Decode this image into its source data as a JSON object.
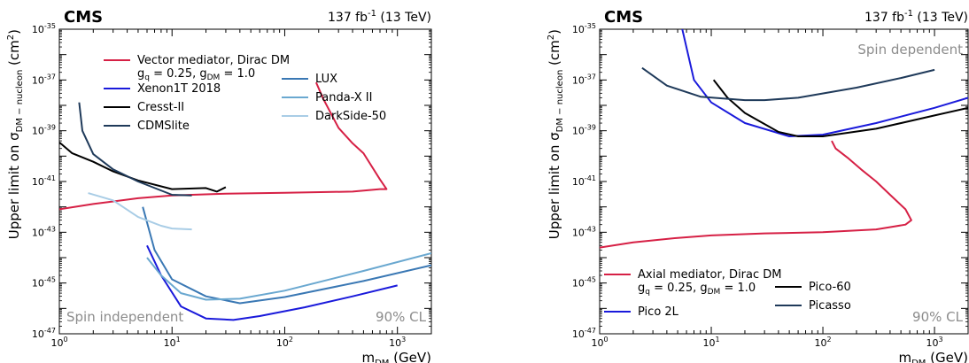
{
  "chart_data": [
    {
      "type": "line",
      "title": "CMS",
      "luminosity": "137 fb",
      "luminosity_exp": "-1",
      "energy": "(13 TeV)",
      "xlabel": "m",
      "xlabel_sub": "DM",
      "xlabel_unit": "(GeV)",
      "ylabel": "Upper limit on σ",
      "ylabel_sub": "DM − nucleon",
      "ylabel_unit": "(cm",
      "ylabel_unit_exp": "2",
      "ylabel_unit_close": ")",
      "xscale": "log",
      "yscale": "log",
      "xlim": [
        1,
        2000
      ],
      "ylim": [
        1e-47,
        1e-35
      ],
      "xticks": [
        {
          "v": 1,
          "m": "10",
          "e": "0"
        },
        {
          "v": 10,
          "m": "10",
          "e": "1"
        },
        {
          "v": 100,
          "m": "10",
          "e": "2"
        },
        {
          "v": 1000,
          "m": "10",
          "e": "3"
        }
      ],
      "yticks": [
        {
          "v": 1e-47,
          "m": "10",
          "e": "-47"
        },
        {
          "v": 1e-45,
          "m": "10",
          "e": "-45"
        },
        {
          "v": 1e-43,
          "m": "10",
          "e": "-43"
        },
        {
          "v": 1e-41,
          "m": "10",
          "e": "-41"
        },
        {
          "v": 1e-39,
          "m": "10",
          "e": "-39"
        },
        {
          "v": 1e-37,
          "m": "10",
          "e": "-37"
        },
        {
          "v": 1e-35,
          "m": "10",
          "e": "-35"
        }
      ],
      "annotation_left": "Spin independent",
      "annotation_right": "90% CL",
      "legend": [
        {
          "label": "Vector mediator, Dirac DM",
          "color": "#d62045"
        },
        {
          "label": "Xenon1T 2018",
          "color": "#1a1adb"
        },
        {
          "label": "Cresst-II",
          "color": "#000000"
        },
        {
          "label": "CDMSlite",
          "color": "#1f3a5a"
        },
        {
          "label": "LUX",
          "color": "#3a78b4"
        },
        {
          "label": "Panda-X II",
          "color": "#6aa8d0"
        },
        {
          "label": "DarkSide-50",
          "color": "#a9cde6"
        }
      ],
      "legend_couplings": {
        "g_q": "g",
        "q_sub": "q",
        "q_val": " = 0.25, g",
        "dm_sub": "DM",
        "dm_val": " = 1.0"
      },
      "series": [
        {
          "name": "Vector mediator, Dirac DM",
          "color": "#d62045",
          "points": [
            [
              1,
              8e-43
            ],
            [
              2,
              1.3e-42
            ],
            [
              5,
              2.2e-42
            ],
            [
              10,
              2.8e-42
            ],
            [
              30,
              3.3e-42
            ],
            [
              100,
              3.6e-42
            ],
            [
              400,
              4e-42
            ],
            [
              700,
              5e-42
            ],
            [
              800,
              5e-42
            ],
            [
              700,
              1.2e-41
            ],
            [
              500,
              1.3e-40
            ],
            [
              400,
              3.2e-40
            ],
            [
              300,
              1.3e-39
            ],
            [
              220,
              1.8e-38
            ],
            [
              190,
              8e-38
            ]
          ]
        },
        {
          "name": "Xenon1T 2018",
          "color": "#1a1adb",
          "points": [
            [
              6,
              3e-44
            ],
            [
              8,
              2e-45
            ],
            [
              12,
              1.2e-46
            ],
            [
              20,
              4e-47
            ],
            [
              35,
              3.5e-47
            ],
            [
              60,
              5e-47
            ],
            [
              150,
              1.1e-46
            ],
            [
              400,
              3e-46
            ],
            [
              1000,
              8e-46
            ]
          ]
        },
        {
          "name": "Cresst-II",
          "color": "#000000",
          "points": [
            [
              1,
              3.5e-40
            ],
            [
              1.3,
              1.3e-40
            ],
            [
              2,
              6e-41
            ],
            [
              3,
              2.5e-41
            ],
            [
              5,
              1.1e-41
            ],
            [
              10,
              5e-42
            ],
            [
              20,
              5.5e-42
            ],
            [
              25,
              4e-42
            ],
            [
              30,
              6e-42
            ]
          ]
        },
        {
          "name": "CDMSlite",
          "color": "#1f3a5a",
          "points": [
            [
              1.5,
              1.3e-38
            ],
            [
              1.6,
              1e-39
            ],
            [
              2,
              1.2e-40
            ],
            [
              3,
              3e-41
            ],
            [
              5,
              1e-41
            ],
            [
              10,
              3e-42
            ],
            [
              15,
              2.8e-42
            ]
          ]
        },
        {
          "name": "LUX",
          "color": "#3a78b4",
          "points": [
            [
              5.5,
              1e-42
            ],
            [
              7,
              2e-44
            ],
            [
              10,
              1.4e-45
            ],
            [
              20,
              3e-46
            ],
            [
              40,
              1.6e-46
            ],
            [
              100,
              2.8e-46
            ],
            [
              500,
              1.2e-45
            ],
            [
              2000,
              5e-45
            ]
          ]
        },
        {
          "name": "Panda-X II",
          "color": "#6aa8d0",
          "points": [
            [
              6,
              1e-44
            ],
            [
              8,
              2e-45
            ],
            [
              12,
              4e-46
            ],
            [
              20,
              2.2e-46
            ],
            [
              40,
              2.4e-46
            ],
            [
              100,
              5e-46
            ],
            [
              500,
              3e-45
            ],
            [
              2000,
              1.5e-44
            ]
          ]
        },
        {
          "name": "DarkSide-50",
          "color": "#a9cde6",
          "points": [
            [
              1.8,
              3.5e-42
            ],
            [
              3,
              1.8e-42
            ],
            [
              5,
              4e-43
            ],
            [
              8,
              1.8e-43
            ],
            [
              10,
              1.4e-43
            ],
            [
              15,
              1.3e-43
            ]
          ]
        }
      ]
    },
    {
      "type": "line",
      "title": "CMS",
      "luminosity": "137 fb",
      "luminosity_exp": "-1",
      "energy": "(13 TeV)",
      "xlabel": "m",
      "xlabel_sub": "DM",
      "xlabel_unit": "(GeV)",
      "ylabel": "Upper limit on σ",
      "ylabel_sub": "DM − nucleon",
      "ylabel_unit": "(cm",
      "ylabel_unit_exp": "2",
      "ylabel_unit_close": ")",
      "xscale": "log",
      "yscale": "log",
      "xlim": [
        1,
        2000
      ],
      "ylim": [
        1e-47,
        1e-35
      ],
      "xticks": [
        {
          "v": 1,
          "m": "10",
          "e": "0"
        },
        {
          "v": 10,
          "m": "10",
          "e": "1"
        },
        {
          "v": 100,
          "m": "10",
          "e": "2"
        },
        {
          "v": 1000,
          "m": "10",
          "e": "3"
        }
      ],
      "yticks": [
        {
          "v": 1e-47,
          "m": "10",
          "e": "-47"
        },
        {
          "v": 1e-45,
          "m": "10",
          "e": "-45"
        },
        {
          "v": 1e-43,
          "m": "10",
          "e": "-43"
        },
        {
          "v": 1e-41,
          "m": "10",
          "e": "-41"
        },
        {
          "v": 1e-39,
          "m": "10",
          "e": "-39"
        },
        {
          "v": 1e-37,
          "m": "10",
          "e": "-37"
        },
        {
          "v": 1e-35,
          "m": "10",
          "e": "-35"
        }
      ],
      "annotation_top": "Spin dependent",
      "annotation_right": "90% CL",
      "legend": [
        {
          "label": "Axial mediator, Dirac DM",
          "color": "#d62045"
        },
        {
          "label": "Pico 2L",
          "color": "#1a1adb"
        },
        {
          "label": "Pico-60",
          "color": "#000000"
        },
        {
          "label": "Picasso",
          "color": "#1f3a5a"
        }
      ],
      "legend_couplings": {
        "g_q": "g",
        "q_sub": "q",
        "q_val": " = 0.25, g",
        "dm_sub": "DM",
        "dm_val": " = 1.0"
      },
      "series": [
        {
          "name": "Axial mediator, Dirac DM",
          "color": "#d62045",
          "points": [
            [
              1,
              2.5e-44
            ],
            [
              2,
              4e-44
            ],
            [
              5,
              6e-44
            ],
            [
              10,
              7.5e-44
            ],
            [
              30,
              9e-44
            ],
            [
              100,
              1e-43
            ],
            [
              300,
              1.3e-43
            ],
            [
              550,
              2e-43
            ],
            [
              620,
              3e-43
            ],
            [
              550,
              8e-43
            ],
            [
              400,
              3e-42
            ],
            [
              300,
              1e-41
            ],
            [
              220,
              3e-41
            ],
            [
              170,
              8e-41
            ],
            [
              130,
              2e-40
            ],
            [
              120,
              4e-40
            ]
          ]
        },
        {
          "name": "Pico 2L",
          "color": "#1a1adb",
          "points": [
            [
              5.5,
              1e-35
            ],
            [
              7,
              1e-37
            ],
            [
              10,
              1.3e-38
            ],
            [
              20,
              2e-39
            ],
            [
              50,
              6e-40
            ],
            [
              100,
              7e-40
            ],
            [
              300,
              2e-39
            ],
            [
              1000,
              8e-39
            ],
            [
              2000,
              2e-38
            ]
          ]
        },
        {
          "name": "Pico-60",
          "color": "#000000",
          "points": [
            [
              10.5,
              1e-37
            ],
            [
              14,
              2e-38
            ],
            [
              20,
              5e-39
            ],
            [
              40,
              9e-40
            ],
            [
              60,
              6e-40
            ],
            [
              100,
              6e-40
            ],
            [
              300,
              1.2e-39
            ],
            [
              1000,
              4e-39
            ],
            [
              2000,
              8e-39
            ]
          ]
        },
        {
          "name": "Picasso",
          "color": "#1f3a5a",
          "points": [
            [
              2.4,
              3e-37
            ],
            [
              4,
              6e-38
            ],
            [
              8,
              2.2e-38
            ],
            [
              20,
              1.6e-38
            ],
            [
              30,
              1.6e-38
            ],
            [
              60,
              2e-38
            ],
            [
              200,
              5e-38
            ],
            [
              500,
              1.2e-37
            ],
            [
              1000,
              2.5e-37
            ]
          ]
        }
      ]
    }
  ]
}
